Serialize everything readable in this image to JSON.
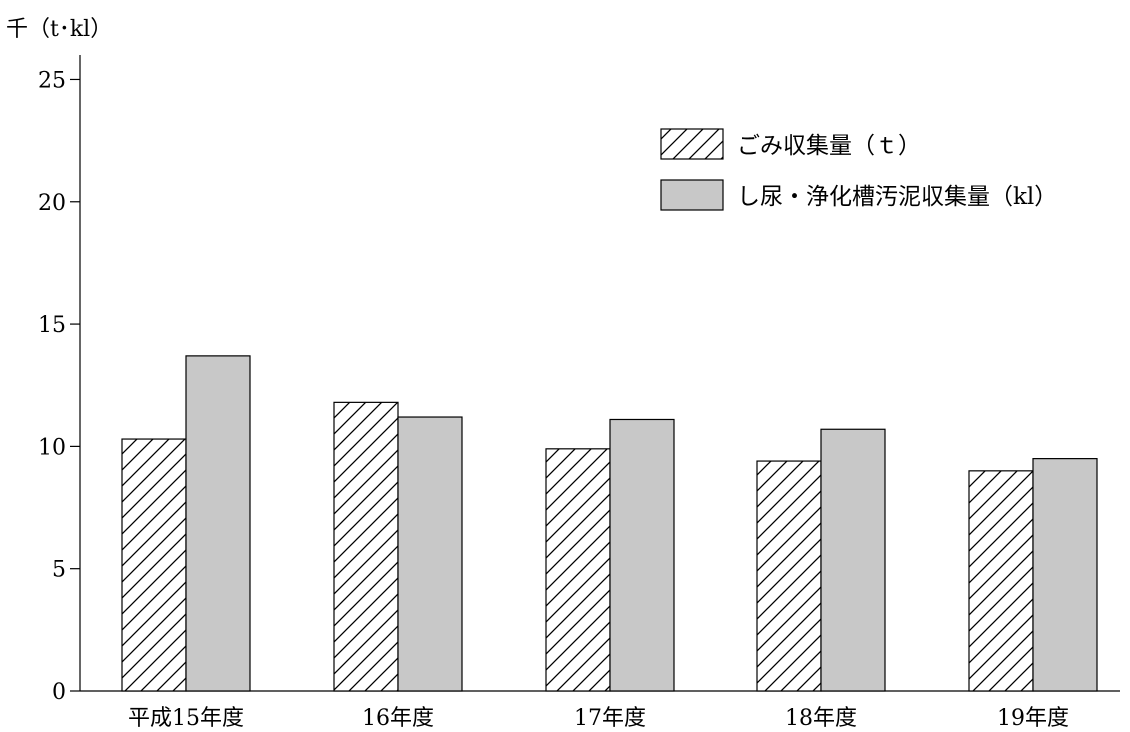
{
  "chart_data": {
    "type": "bar",
    "categories": [
      "平成15年度",
      "16年度",
      "17年度",
      "18年度",
      "19年度"
    ],
    "series": [
      {
        "name": "ごみ収集量（ｔ）",
        "values": [
          10.3,
          11.8,
          9.9,
          9.4,
          9.0
        ],
        "pattern": "hatch",
        "color": "#ffffff"
      },
      {
        "name": "し尿・浄化槽汚泥収集量（kl）",
        "values": [
          13.7,
          11.2,
          11.1,
          10.7,
          9.5
        ],
        "pattern": "solid",
        "color": "#c8c8c8"
      }
    ],
    "ylabel": "千（t･kl）",
    "ylim": [
      0,
      26
    ],
    "yticks": [
      0,
      5,
      10,
      15,
      20,
      25
    ],
    "grid": false,
    "legend_position": "top-right"
  }
}
